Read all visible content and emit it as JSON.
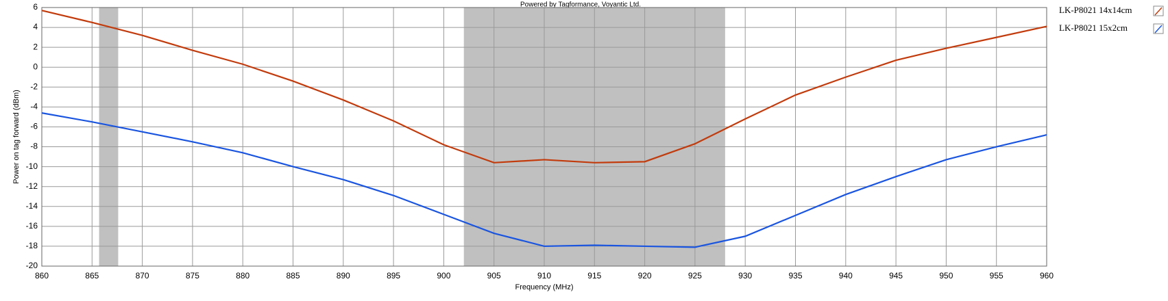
{
  "chart_data": {
    "type": "line",
    "title": "Powered by Tagformance, Voyantic Ltd.",
    "x_label": "Frequency (MHz)",
    "y_label": "Power on tag forward (dBm)",
    "x": [
      860,
      865,
      870,
      875,
      880,
      885,
      890,
      895,
      900,
      905,
      910,
      915,
      920,
      925,
      930,
      935,
      940,
      945,
      950,
      955,
      960
    ],
    "series": [
      {
        "name": "LK-P8021 14x14cm",
        "color": "#c23b0c",
        "values": [
          5.7,
          4.5,
          3.2,
          1.7,
          0.3,
          -1.4,
          -3.3,
          -5.4,
          -7.8,
          -9.6,
          -9.3,
          -9.6,
          -9.5,
          -7.7,
          -5.2,
          -2.8,
          -1.0,
          0.7,
          1.9,
          3.0,
          4.1
        ]
      },
      {
        "name": "LK-P8021 15x2cm",
        "color": "#1a55e0",
        "values": [
          -4.6,
          -5.5,
          -6.5,
          -7.5,
          -8.6,
          -10.0,
          -11.3,
          -12.9,
          -14.8,
          -16.7,
          -18.0,
          -17.9,
          -18.0,
          -18.1,
          -17.0,
          -14.9,
          -12.8,
          -11.0,
          -9.3,
          -8.0,
          -6.8
        ]
      }
    ],
    "shaded_regions": [
      [
        865.7,
        867.6
      ],
      [
        902,
        928
      ]
    ],
    "shade_color": "#c0c0c0",
    "xlim": [
      860,
      960
    ],
    "ylim": [
      -20,
      6
    ],
    "xticks": [
      860,
      865,
      870,
      875,
      880,
      885,
      890,
      895,
      900,
      905,
      910,
      915,
      920,
      925,
      930,
      935,
      940,
      945,
      950,
      955,
      960
    ],
    "yticks": [
      -20,
      -18,
      -16,
      -14,
      -12,
      -10,
      -8,
      -6,
      -4,
      -2,
      0,
      2,
      4,
      6
    ],
    "grid": true,
    "legend": "right"
  }
}
